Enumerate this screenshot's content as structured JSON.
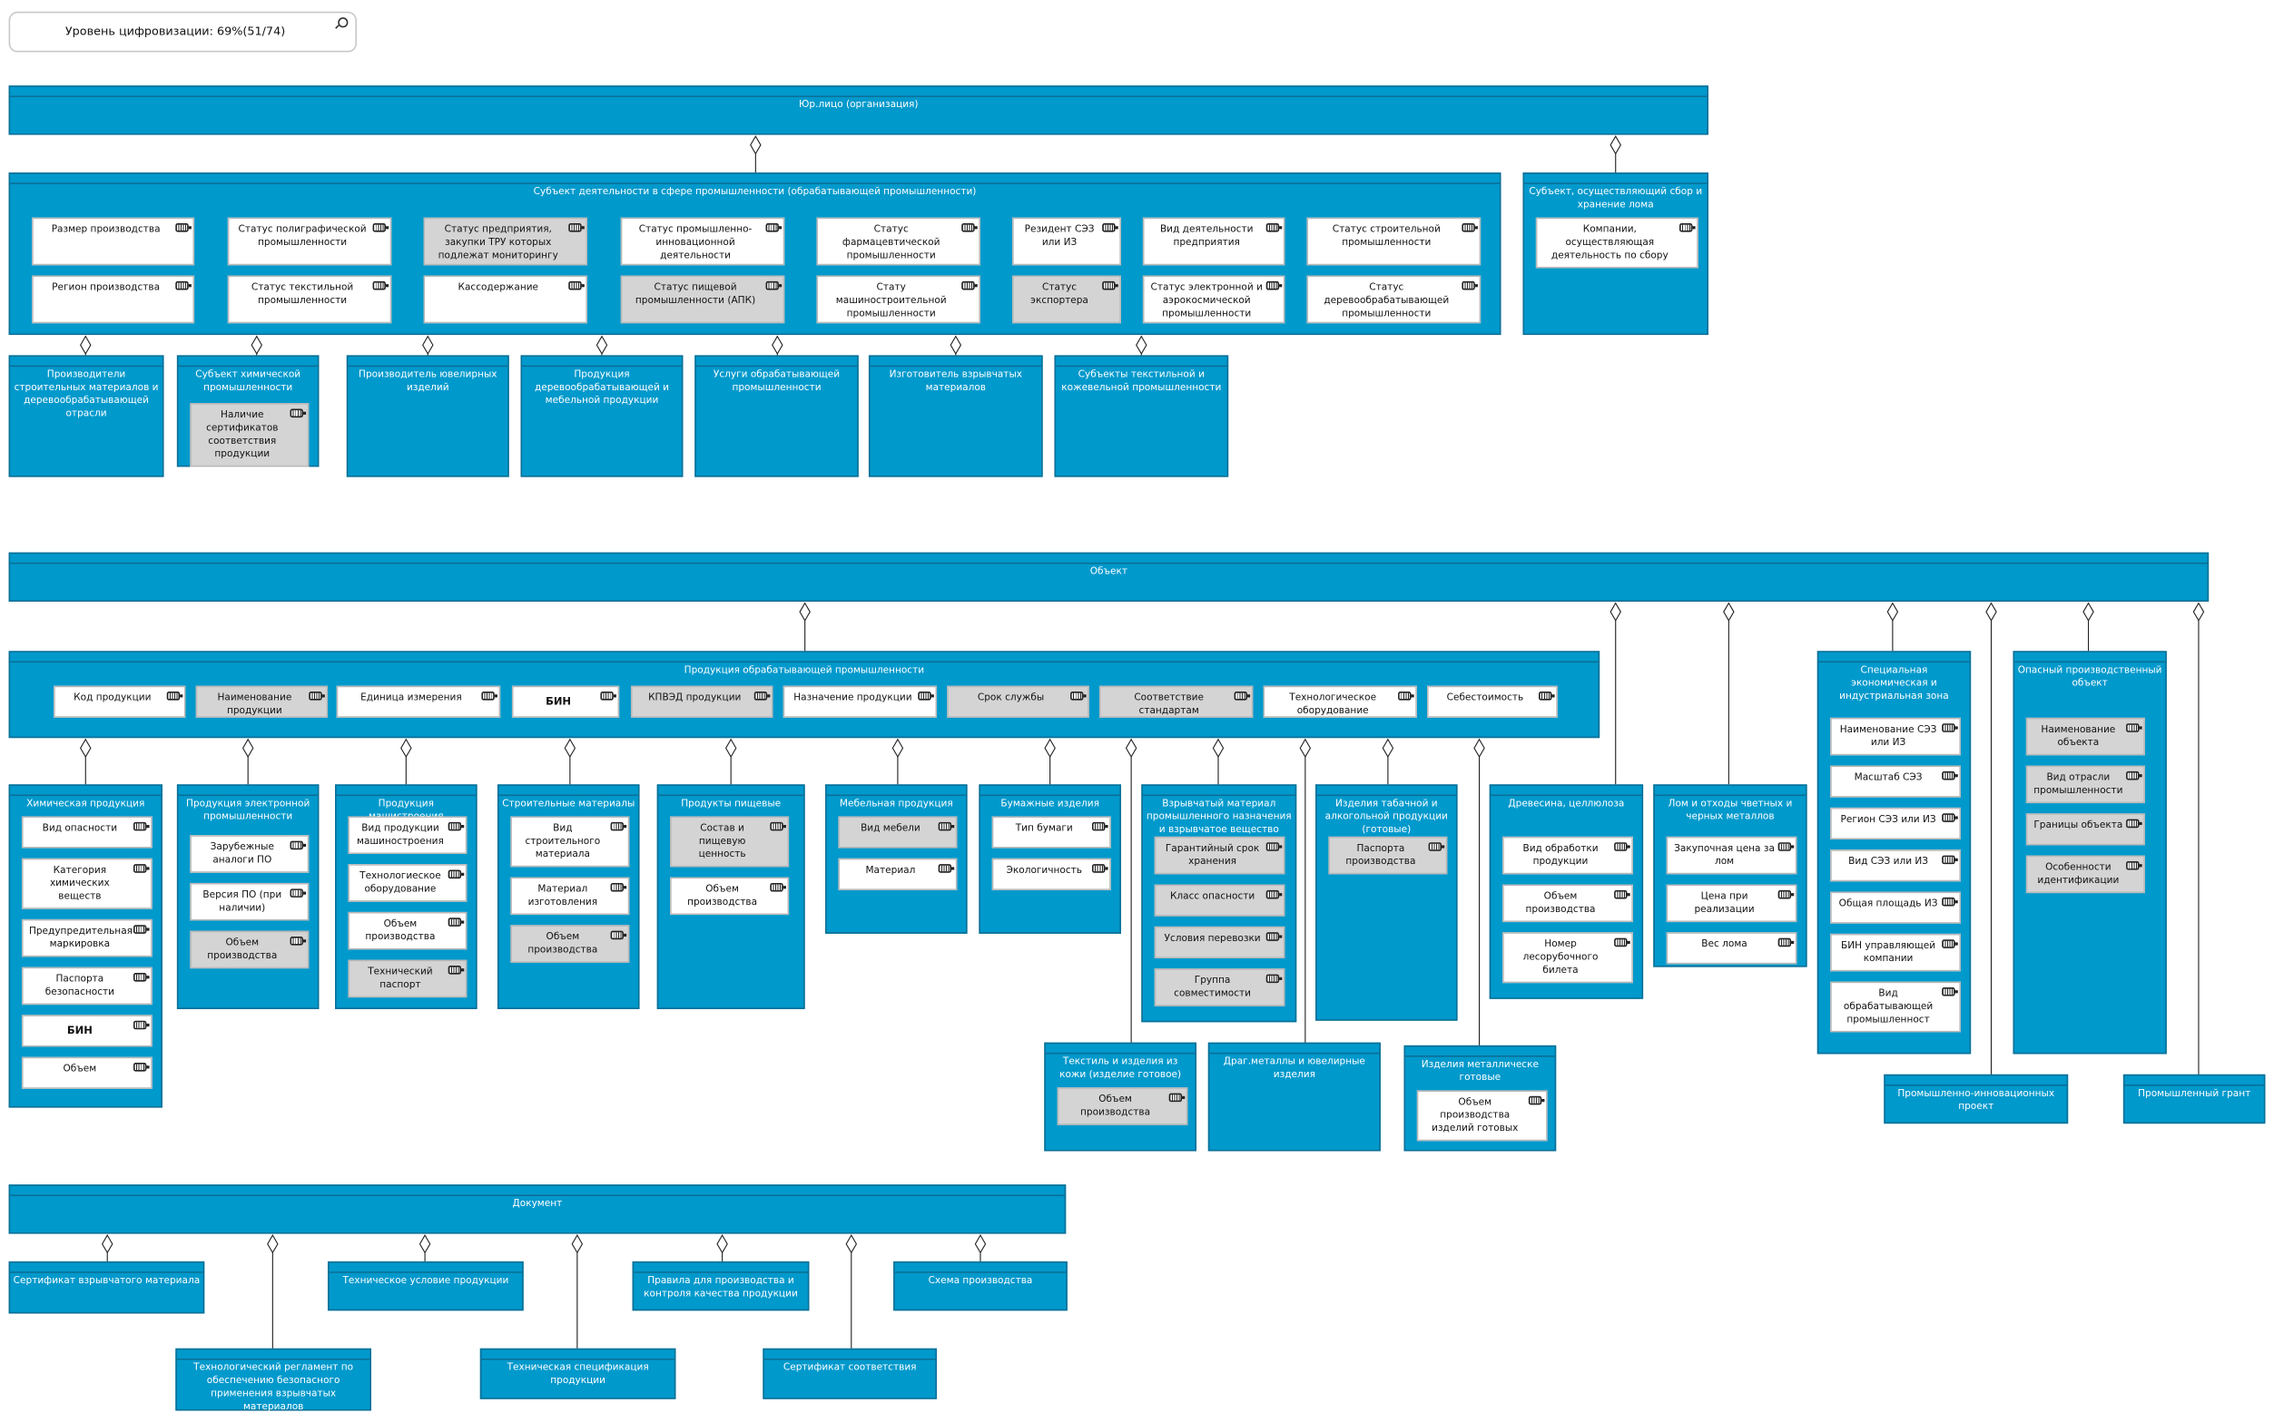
{
  "search": {
    "text": "Уровень цифровизации: 69%(51/74)",
    "icon": "search-icon"
  },
  "colors": {
    "box": "#0099cc",
    "box_border": "#0b6f96",
    "attr_gray": "#d4d4d4",
    "attr_white": "#ffffff"
  },
  "boxes": {
    "legal-entity": {
      "title": "Юр.лицо (организация)",
      "attrs": []
    },
    "industry-subject": {
      "title": "Субъект деятельности в сфере промышленности (обрабатывающей промышленности)",
      "attrs": [
        {
          "label": "Размер производства"
        },
        {
          "label": "Регион производства"
        },
        {
          "label": "Статус полиграфической промышленности"
        },
        {
          "label": "Статус текстильной промышленности"
        },
        {
          "label": "Статус предприятия, закупки ТРУ которых подлежат мониторингу",
          "gray": true
        },
        {
          "label": "Кассодержание"
        },
        {
          "label": "Статус промышленно-инновационной деятельности"
        },
        {
          "label": "Статус пищевой промышленности (АПК)",
          "gray": true
        },
        {
          "label": "Статус фармацевтической промышленности"
        },
        {
          "label": "Стату машиностроительной промышленности"
        },
        {
          "label": "Резидент СЭЗ или ИЗ"
        },
        {
          "label": "Статус экспортера",
          "gray": true
        },
        {
          "label": "Вид деятельности предприятия"
        },
        {
          "label": "Статус электронной и аэрокосмической промышленности"
        },
        {
          "label": "Статус строительной промышленности"
        },
        {
          "label": "Статус деревообрабатывающей промышленности"
        }
      ]
    },
    "scrap-subject": {
      "title": "Субъект, осуществляющий сбор и хранение лома",
      "attrs": [
        {
          "label": "Компании, осуществляющая деятельность по сбору"
        }
      ]
    },
    "building-materials-producers": {
      "title": "Производители строительных материалов и деревообрабатывающей отрасли",
      "attrs": []
    },
    "chemical-subject": {
      "title": "Субъект химической промышленности",
      "attrs": [
        {
          "label": "Наличие сертификатов соответствия продукции",
          "gray": true
        }
      ]
    },
    "jewelry-producer": {
      "title": "Производитель ювелирных изделий",
      "attrs": []
    },
    "wood-furniture-products": {
      "title": "Продукция деревообрабатывающей и мебельной продукции",
      "attrs": []
    },
    "manufacturing-services": {
      "title": "Услуги обрабатывающей промышленности",
      "attrs": []
    },
    "explosives-maker": {
      "title": "Изготовитель взрывчатых материалов",
      "attrs": []
    },
    "textile-subjects": {
      "title": "Субъекты текстильной и кожевельной промышленности",
      "attrs": []
    },
    "object": {
      "title": "Объект",
      "attrs": []
    },
    "manufacturing-products": {
      "title": "Продукция обрабатывающей промышленности",
      "attrs": [
        {
          "label": "Код продукции"
        },
        {
          "label": "Наименование продукции",
          "gray": true
        },
        {
          "label": "Единица измерения"
        },
        {
          "label": "БИН",
          "bold": true
        },
        {
          "label": "КПВЭД продукции",
          "gray": true
        },
        {
          "label": "Назначение продукции"
        },
        {
          "label": "Срок службы",
          "gray": true
        },
        {
          "label": "Соответствие стандартам",
          "gray": true
        },
        {
          "label": "Технологическое оборудование"
        },
        {
          "label": "Себестоимость"
        }
      ]
    },
    "chemical-products": {
      "title": "Химическая продукция",
      "attrs": [
        {
          "label": "Вид опасности"
        },
        {
          "label": "Категория химических веществ"
        },
        {
          "label": "Предупредительная маркировка"
        },
        {
          "label": "Паспорта безопасности"
        },
        {
          "label": "БИН",
          "bold": true
        },
        {
          "label": "Объем"
        }
      ]
    },
    "electronics-products": {
      "title": "Продукция электронной промышленности",
      "attrs": [
        {
          "label": "Зарубежные аналоги ПО"
        },
        {
          "label": "Версия ПО (при наличии)"
        },
        {
          "label": "Объем производства",
          "gray": true
        }
      ]
    },
    "machinery-products": {
      "title": "Продукция машистроения",
      "attrs": [
        {
          "label": "Вид продукции машиностроения"
        },
        {
          "label": "Технологиеское оборудование"
        },
        {
          "label": "Объем производства"
        },
        {
          "label": "Технический паспорт",
          "gray": true
        }
      ]
    },
    "building-materials": {
      "title": "Строительные материалы",
      "attrs": [
        {
          "label": "Вид строительного материала"
        },
        {
          "label": "Материал изготовления"
        },
        {
          "label": "Объем производства",
          "gray": true
        }
      ]
    },
    "food-products": {
      "title": "Продукты пищевые",
      "attrs": [
        {
          "label": "Состав и пищевую ценность",
          "gray": true
        },
        {
          "label": "Объем производства"
        }
      ]
    },
    "furniture-products": {
      "title": "Мебельная продукция",
      "attrs": [
        {
          "label": "Вид мебели",
          "gray": true
        },
        {
          "label": "Материал"
        }
      ]
    },
    "paper-products": {
      "title": "Бумажные изделия",
      "attrs": [
        {
          "label": "Тип бумаги"
        },
        {
          "label": "Экологичность"
        }
      ]
    },
    "explosive-materials": {
      "title": "Взрывчатый материал промышленного назначения и взрывчатое вещество",
      "attrs": [
        {
          "label": "Гарантийный срок хранения",
          "gray": true
        },
        {
          "label": "Класс опасности",
          "gray": true
        },
        {
          "label": "Условия перевозки",
          "gray": true
        },
        {
          "label": "Группа совместимости",
          "gray": true
        }
      ]
    },
    "tobacco-alcohol": {
      "title": "Изделия табачной и алкогольной продукции (готовые)",
      "attrs": [
        {
          "label": "Паспорта производства",
          "gray": true
        }
      ]
    },
    "wood-cellulose": {
      "title": "Древесина, целлюлоза",
      "attrs": [
        {
          "label": "Вид обработки продукции"
        },
        {
          "label": "Объем производства"
        },
        {
          "label": "Номер лесорубочного билета"
        }
      ]
    },
    "scrap-metals": {
      "title": "Лом и отходы чветных и черных металлов",
      "attrs": [
        {
          "label": "Закупочная цена за лом"
        },
        {
          "label": "Цена при реализации"
        },
        {
          "label": "Вес лома"
        }
      ]
    },
    "sez": {
      "title": "Специальная экономическая и индустриальная зона",
      "attrs": [
        {
          "label": "Наименование СЭЗ или ИЗ"
        },
        {
          "label": "Масштаб СЭЗ"
        },
        {
          "label": "Регион СЭЗ или ИЗ"
        },
        {
          "label": "Вид СЭЗ или ИЗ"
        },
        {
          "label": "Общая площадь ИЗ"
        },
        {
          "label": "БИН управляющей компании"
        },
        {
          "label": "Вид обрабатывающей промышленност"
        }
      ]
    },
    "hazardous-object": {
      "title": "Опасный производственный объект",
      "attrs": [
        {
          "label": "Наименование объекта",
          "gray": true
        },
        {
          "label": "Вид отрасли промышленности",
          "gray": true
        },
        {
          "label": "Границы объекта",
          "gray": true
        },
        {
          "label": "Особенности идентификации",
          "gray": true
        }
      ]
    },
    "textile-leather": {
      "title": "Текстиль и изделия из кожи (изделие готовое)",
      "attrs": [
        {
          "label": "Объем производства",
          "gray": true
        }
      ]
    },
    "precious-metals": {
      "title": "Драг.металлы и ювелирные изделия",
      "attrs": []
    },
    "metal-products": {
      "title": "Изделия металлическе готовые",
      "attrs": [
        {
          "label": "Объем производства изделий готовых"
        }
      ]
    },
    "innovation-project": {
      "title": "Промышленно-инновационных проект",
      "attrs": []
    },
    "industrial-grant": {
      "title": "Промышленный грант",
      "attrs": []
    },
    "document": {
      "title": "Документ",
      "attrs": []
    },
    "explosive-certificate": {
      "title": "Сертификат взрывчатого материала",
      "attrs": []
    },
    "tech-regulation": {
      "title": "Технологический регламент по обеспечению безопасного применения взрывчатых материалов",
      "attrs": []
    },
    "tech-conditions": {
      "title": "Техническое условие продукции",
      "attrs": []
    },
    "tech-specification": {
      "title": "Техническая спецификация продукции",
      "attrs": []
    },
    "quality-rules": {
      "title": "Правила для производства и контроля качества продукции",
      "attrs": []
    },
    "conformity-certificate": {
      "title": "Сертификат соответствия",
      "attrs": []
    },
    "production-scheme": {
      "title": "Схема производства",
      "attrs": []
    }
  }
}
